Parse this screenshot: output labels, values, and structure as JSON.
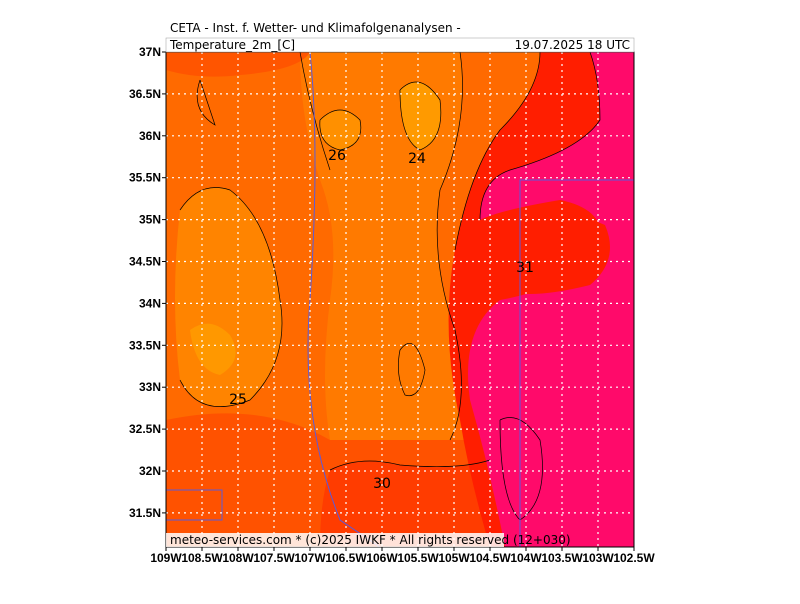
{
  "header": {
    "title": "CETA - Inst. f. Wetter- und Klimafolgenanalysen -",
    "field": "Temperature_2m_[C]",
    "valid": "19.07.2025 18 UTC"
  },
  "map": {
    "lat_labels": [
      "37N",
      "36.5N",
      "36N",
      "35.5N",
      "35N",
      "34.5N",
      "34N",
      "33.5N",
      "33N",
      "32.5N",
      "32N",
      "31.5N"
    ],
    "lon_labels": [
      "109W",
      "108.5W",
      "108W",
      "107.5W",
      "107W",
      "106.5W",
      "106W",
      "105.5W",
      "105W",
      "104.5W",
      "104W",
      "103.5W",
      "103W",
      "102.5W"
    ],
    "contour_labels": [
      26,
      24,
      31,
      25,
      30
    ],
    "footer": "meteo-services.com * (c)2025 IWKF * All rights reserved (12+030)"
  }
}
